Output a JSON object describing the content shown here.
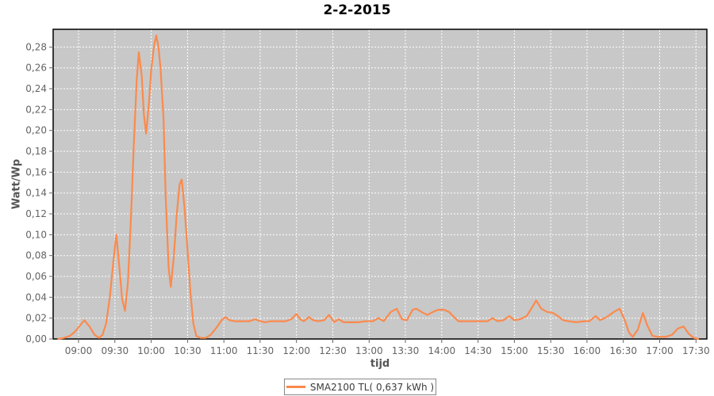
{
  "title": "2-2-2015",
  "colors": {
    "series": "#FB8A4D",
    "plot_bg": "#C8C8C8",
    "grid": "#FFFFFF",
    "outer_bg": "#FFFFFF",
    "tick_label": "#646464",
    "axis_title": "#555555",
    "title_color": "#000000",
    "plot_border": "#000000",
    "legend_border": "#888888"
  },
  "legend": {
    "label": "SMA2100 TL( 0,637 kWh )",
    "position": "bottom-center"
  },
  "chart_data": {
    "type": "line",
    "title": "2-2-2015",
    "xlabel": "tijd",
    "ylabel": "Watt/Wp",
    "grid": true,
    "legend_position": "bottom-center",
    "x_axis": {
      "unit": "time-of-day",
      "range_hours": [
        8.65,
        17.65
      ],
      "tick_hours": [
        9.0,
        9.5,
        10.0,
        10.5,
        11.0,
        11.5,
        12.0,
        12.5,
        13.0,
        13.5,
        14.0,
        14.5,
        15.0,
        15.5,
        16.0,
        16.5,
        17.0,
        17.5
      ],
      "tick_labels": [
        "09:00",
        "09:30",
        "10:00",
        "10:30",
        "11:00",
        "11:30",
        "12:00",
        "12:30",
        "13:00",
        "13:30",
        "14:00",
        "14:30",
        "15:00",
        "15:30",
        "16:00",
        "16:30",
        "17:00",
        "17:30"
      ]
    },
    "y_axis": {
      "range": [
        0,
        0.297
      ],
      "tick_step": 0.02,
      "tick_values": [
        0.0,
        0.02,
        0.04,
        0.06,
        0.08,
        0.1,
        0.12,
        0.14,
        0.16,
        0.18,
        0.2,
        0.22,
        0.24,
        0.26,
        0.28
      ],
      "tick_labels": [
        "0,00",
        "0,02",
        "0,04",
        "0,06",
        "0,08",
        "0,10",
        "0,12",
        "0,14",
        "0,16",
        "0,18",
        "0,20",
        "0,22",
        "0,24",
        "0,26",
        "0,28"
      ]
    },
    "series": [
      {
        "name": "SMA2100 TL( 0,637 kWh )",
        "color": "#FB8A4D",
        "points_hours_value": [
          [
            8.72,
            0.0
          ],
          [
            8.8,
            0.001
          ],
          [
            8.88,
            0.003
          ],
          [
            8.95,
            0.007
          ],
          [
            9.02,
            0.013
          ],
          [
            9.08,
            0.018
          ],
          [
            9.15,
            0.012
          ],
          [
            9.22,
            0.004
          ],
          [
            9.28,
            0.001
          ],
          [
            9.33,
            0.004
          ],
          [
            9.38,
            0.015
          ],
          [
            9.43,
            0.04
          ],
          [
            9.48,
            0.075
          ],
          [
            9.52,
            0.1
          ],
          [
            9.56,
            0.07
          ],
          [
            9.6,
            0.038
          ],
          [
            9.64,
            0.027
          ],
          [
            9.68,
            0.055
          ],
          [
            9.72,
            0.115
          ],
          [
            9.76,
            0.185
          ],
          [
            9.8,
            0.248
          ],
          [
            9.83,
            0.275
          ],
          [
            9.87,
            0.252
          ],
          [
            9.9,
            0.215
          ],
          [
            9.93,
            0.197
          ],
          [
            9.97,
            0.228
          ],
          [
            10.0,
            0.258
          ],
          [
            10.04,
            0.282
          ],
          [
            10.07,
            0.291
          ],
          [
            10.1,
            0.28
          ],
          [
            10.13,
            0.258
          ],
          [
            10.17,
            0.21
          ],
          [
            10.2,
            0.135
          ],
          [
            10.24,
            0.068
          ],
          [
            10.27,
            0.05
          ],
          [
            10.31,
            0.078
          ],
          [
            10.35,
            0.118
          ],
          [
            10.39,
            0.148
          ],
          [
            10.42,
            0.153
          ],
          [
            10.46,
            0.125
          ],
          [
            10.5,
            0.085
          ],
          [
            10.54,
            0.045
          ],
          [
            10.58,
            0.015
          ],
          [
            10.62,
            0.003
          ],
          [
            10.68,
            0.001
          ],
          [
            10.75,
            0.001
          ],
          [
            10.82,
            0.004
          ],
          [
            10.9,
            0.011
          ],
          [
            10.97,
            0.018
          ],
          [
            11.02,
            0.021
          ],
          [
            11.08,
            0.018
          ],
          [
            11.15,
            0.017
          ],
          [
            11.25,
            0.017
          ],
          [
            11.35,
            0.017
          ],
          [
            11.43,
            0.019
          ],
          [
            11.5,
            0.017
          ],
          [
            11.57,
            0.016
          ],
          [
            11.65,
            0.017
          ],
          [
            11.75,
            0.017
          ],
          [
            11.85,
            0.017
          ],
          [
            11.93,
            0.019
          ],
          [
            12.0,
            0.024
          ],
          [
            12.05,
            0.019
          ],
          [
            12.1,
            0.017
          ],
          [
            12.17,
            0.021
          ],
          [
            12.23,
            0.018
          ],
          [
            12.3,
            0.017
          ],
          [
            12.38,
            0.018
          ],
          [
            12.45,
            0.023
          ],
          [
            12.52,
            0.016
          ],
          [
            12.58,
            0.019
          ],
          [
            12.65,
            0.016
          ],
          [
            12.75,
            0.016
          ],
          [
            12.85,
            0.016
          ],
          [
            12.95,
            0.017
          ],
          [
            13.05,
            0.017
          ],
          [
            13.13,
            0.02
          ],
          [
            13.2,
            0.017
          ],
          [
            13.3,
            0.026
          ],
          [
            13.38,
            0.029
          ],
          [
            13.45,
            0.019
          ],
          [
            13.52,
            0.018
          ],
          [
            13.6,
            0.028
          ],
          [
            13.65,
            0.029
          ],
          [
            13.72,
            0.026
          ],
          [
            13.8,
            0.023
          ],
          [
            13.88,
            0.026
          ],
          [
            13.95,
            0.028
          ],
          [
            14.03,
            0.028
          ],
          [
            14.1,
            0.026
          ],
          [
            14.17,
            0.021
          ],
          [
            14.23,
            0.017
          ],
          [
            14.33,
            0.017
          ],
          [
            14.43,
            0.017
          ],
          [
            14.53,
            0.017
          ],
          [
            14.63,
            0.017
          ],
          [
            14.7,
            0.02
          ],
          [
            14.77,
            0.017
          ],
          [
            14.85,
            0.018
          ],
          [
            14.93,
            0.022
          ],
          [
            15.0,
            0.018
          ],
          [
            15.08,
            0.019
          ],
          [
            15.17,
            0.022
          ],
          [
            15.25,
            0.031
          ],
          [
            15.3,
            0.037
          ],
          [
            15.37,
            0.029
          ],
          [
            15.45,
            0.026
          ],
          [
            15.53,
            0.025
          ],
          [
            15.6,
            0.022
          ],
          [
            15.67,
            0.018
          ],
          [
            15.75,
            0.017
          ],
          [
            15.85,
            0.016
          ],
          [
            15.95,
            0.017
          ],
          [
            16.03,
            0.017
          ],
          [
            16.12,
            0.022
          ],
          [
            16.18,
            0.018
          ],
          [
            16.27,
            0.021
          ],
          [
            16.37,
            0.026
          ],
          [
            16.45,
            0.029
          ],
          [
            16.52,
            0.018
          ],
          [
            16.58,
            0.006
          ],
          [
            16.63,
            0.002
          ],
          [
            16.7,
            0.009
          ],
          [
            16.77,
            0.025
          ],
          [
            16.83,
            0.013
          ],
          [
            16.9,
            0.003
          ],
          [
            16.98,
            0.002
          ],
          [
            17.08,
            0.002
          ],
          [
            17.17,
            0.004
          ],
          [
            17.25,
            0.01
          ],
          [
            17.33,
            0.012
          ],
          [
            17.4,
            0.005
          ],
          [
            17.47,
            0.001
          ],
          [
            17.53,
            0.0
          ]
        ]
      }
    ]
  }
}
